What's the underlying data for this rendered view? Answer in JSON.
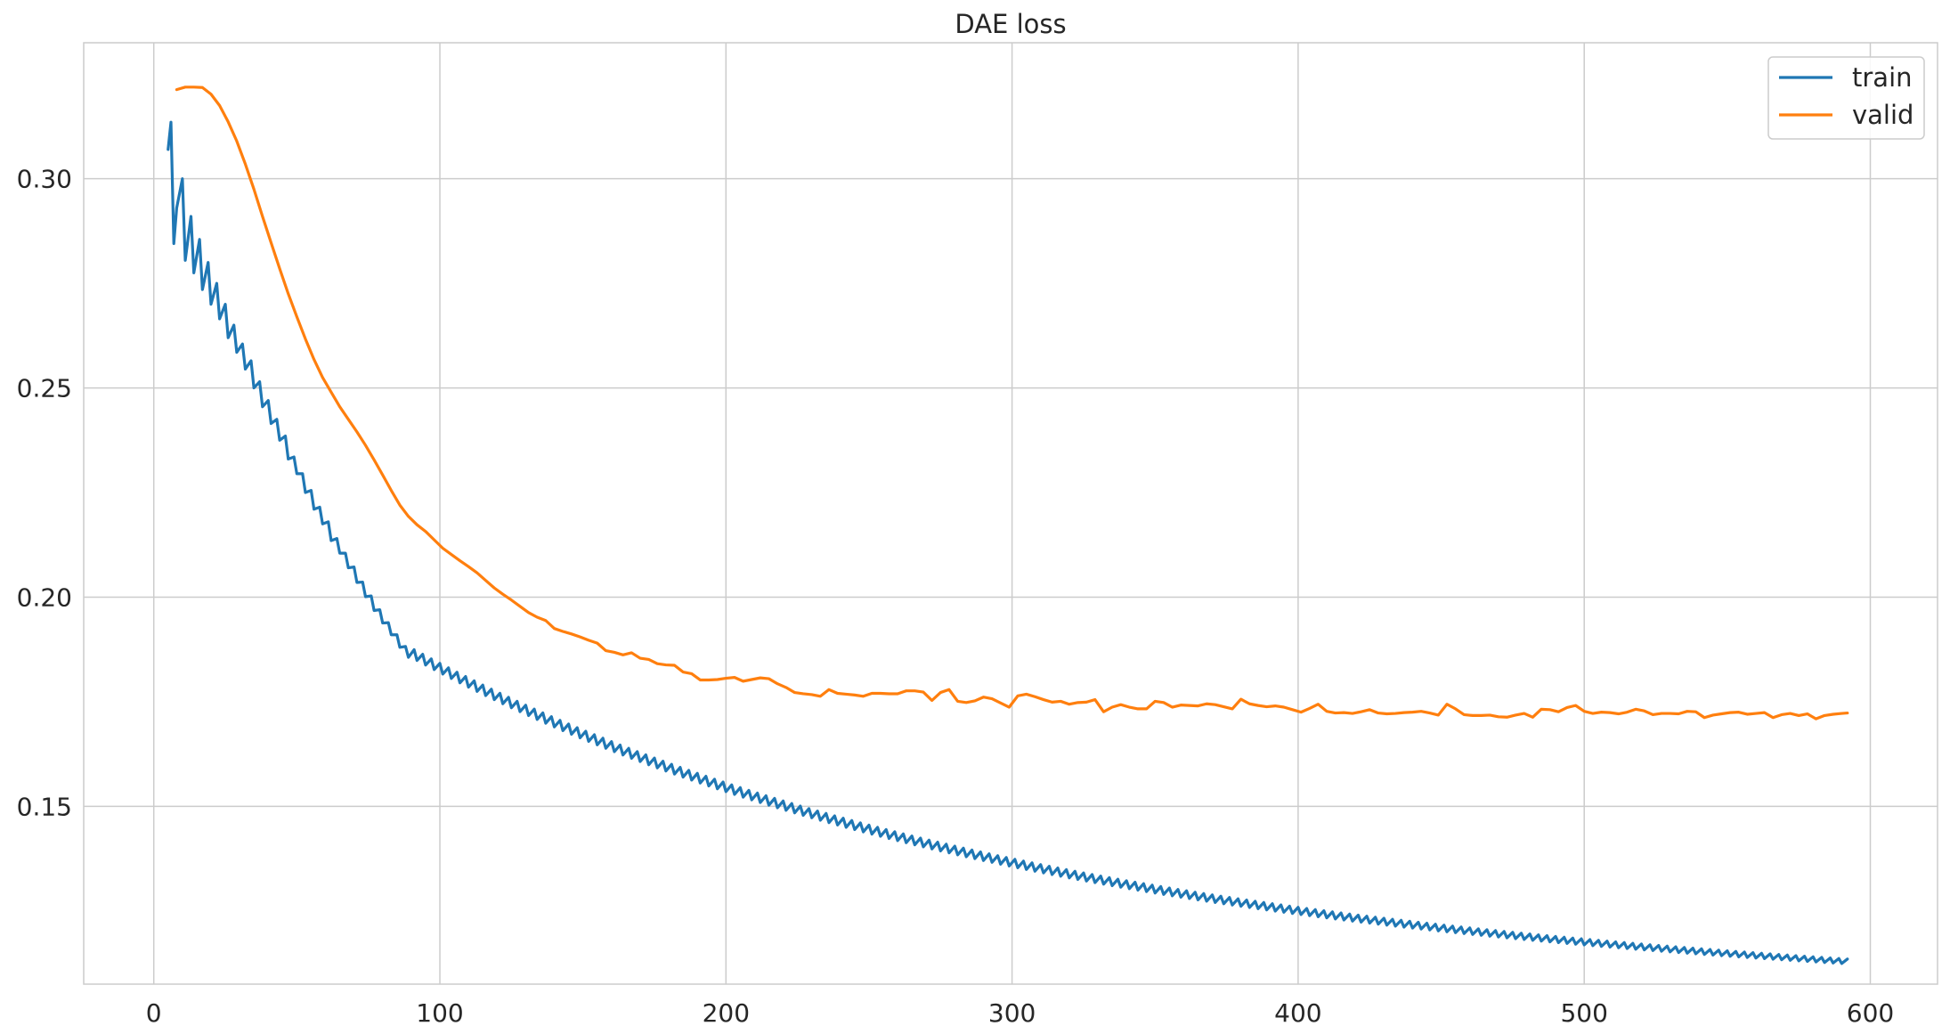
{
  "chart_data": {
    "type": "line",
    "title": "DAE loss",
    "xlabel": "",
    "ylabel": "",
    "xlim": [
      -24.5,
      623.5
    ],
    "ylim": [
      0.1075,
      0.3325
    ],
    "xticks": [
      0,
      100,
      200,
      300,
      400,
      500,
      600
    ],
    "xtick_labels": [
      "0",
      "100",
      "200",
      "300",
      "400",
      "500",
      "600"
    ],
    "yticks": [
      0.15,
      0.2,
      0.25,
      0.3
    ],
    "ytick_labels": [
      "0.15",
      "0.20",
      "0.25",
      "0.30"
    ],
    "grid": true,
    "legend_position": "top-right",
    "series": [
      {
        "name": "train",
        "color": "#1f77b4",
        "description": "zigzag pattern: alternating high/low values every epoch",
        "x_start": 5,
        "x_end": 592,
        "points": [
          [
            5,
            0.307
          ],
          [
            6,
            0.3135
          ],
          [
            7,
            0.2845
          ],
          [
            8,
            0.293
          ],
          [
            10,
            0.3
          ],
          [
            11,
            0.2805
          ],
          [
            13,
            0.291
          ],
          [
            14,
            0.2775
          ],
          [
            16,
            0.2855
          ],
          [
            17,
            0.2735
          ],
          [
            19,
            0.28
          ],
          [
            20,
            0.27
          ],
          [
            22,
            0.275
          ],
          [
            23,
            0.2665
          ],
          [
            25,
            0.27
          ],
          [
            26,
            0.262
          ],
          [
            28,
            0.265
          ],
          [
            29,
            0.2585
          ],
          [
            31,
            0.2605
          ],
          [
            32,
            0.2545
          ],
          [
            34,
            0.2565
          ],
          [
            35,
            0.25
          ],
          [
            37,
            0.2515
          ],
          [
            38,
            0.2455
          ],
          [
            40,
            0.247
          ],
          [
            41,
            0.2415
          ],
          [
            43,
            0.2425
          ],
          [
            44,
            0.2375
          ],
          [
            46,
            0.2385
          ],
          [
            47,
            0.233
          ],
          [
            49,
            0.2335
          ],
          [
            50,
            0.2295
          ],
          [
            52,
            0.2295
          ],
          [
            53,
            0.225
          ],
          [
            55,
            0.2255
          ],
          [
            56,
            0.221
          ],
          [
            58,
            0.2215
          ],
          [
            59,
            0.2175
          ],
          [
            61,
            0.218
          ],
          [
            62,
            0.2135
          ],
          [
            64,
            0.214
          ],
          [
            65,
            0.2105
          ],
          [
            67,
            0.2105
          ],
          [
            68,
            0.207
          ],
          [
            70,
            0.2072
          ],
          [
            71,
            0.2035
          ],
          [
            73,
            0.2036
          ],
          [
            74,
            0.2001
          ],
          [
            76,
            0.2003
          ],
          [
            77,
            0.1968
          ],
          [
            79,
            0.197
          ],
          [
            80,
            0.1938
          ],
          [
            82,
            0.1939
          ],
          [
            83,
            0.191
          ],
          [
            85,
            0.191
          ],
          [
            86,
            0.188
          ],
          [
            88,
            0.1882
          ],
          [
            89,
            0.1856
          ]
        ],
        "tail": {
          "from": 89,
          "to": 592,
          "step": 3,
          "high_end": 0.1128,
          "low_end": 0.1118,
          "amp_start": 0.0026,
          "amp_end": 0.0012
        }
      },
      {
        "name": "valid",
        "color": "#ff7f0e",
        "x_start": 8,
        "x_end": 592,
        "points": [
          [
            8,
            0.3213
          ],
          [
            11,
            0.3219
          ],
          [
            14,
            0.3219
          ],
          [
            17,
            0.3218
          ],
          [
            20,
            0.3202
          ],
          [
            23,
            0.3175
          ],
          [
            26,
            0.3136
          ],
          [
            29,
            0.309
          ],
          [
            32,
            0.3035
          ],
          [
            35,
            0.2975
          ],
          [
            38,
            0.291
          ],
          [
            41,
            0.2847
          ],
          [
            44,
            0.2785
          ],
          [
            47,
            0.2725
          ],
          [
            50,
            0.267
          ],
          [
            53,
            0.2617
          ],
          [
            56,
            0.2568
          ],
          [
            59,
            0.2525
          ],
          [
            62,
            0.249
          ],
          [
            65,
            0.2455
          ],
          [
            68,
            0.2425
          ],
          [
            71,
            0.2395
          ],
          [
            74,
            0.2363
          ],
          [
            77,
            0.2328
          ],
          [
            80,
            0.2292
          ],
          [
            83,
            0.2255
          ],
          [
            86,
            0.222
          ],
          [
            89,
            0.2193
          ],
          [
            92,
            0.2173
          ],
          [
            95,
            0.2157
          ],
          [
            98,
            0.2137
          ],
          [
            101,
            0.2117
          ],
          [
            104,
            0.2102
          ],
          [
            107,
            0.2087
          ],
          [
            110,
            0.2073
          ],
          [
            113,
            0.2058
          ],
          [
            116,
            0.204
          ],
          [
            119,
            0.2022
          ],
          [
            122,
            0.2007
          ],
          [
            125,
            0.1993
          ],
          [
            128,
            0.1978
          ],
          [
            131,
            0.1963
          ],
          [
            134,
            0.1952
          ],
          [
            137,
            0.1944
          ],
          [
            140,
            0.1925
          ],
          [
            143,
            0.1918
          ],
          [
            146,
            0.1912
          ],
          [
            149,
            0.1905
          ],
          [
            152,
            0.1897
          ],
          [
            155,
            0.189
          ],
          [
            158,
            0.1872
          ],
          [
            161,
            0.1868
          ],
          [
            164,
            0.1862
          ],
          [
            167,
            0.1867
          ],
          [
            170,
            0.1854
          ],
          [
            173,
            0.1851
          ],
          [
            176,
            0.1841
          ],
          [
            179,
            0.1838
          ],
          [
            182,
            0.1837
          ],
          [
            185,
            0.1821
          ],
          [
            188,
            0.1817
          ],
          [
            191,
            0.1802
          ],
          [
            194,
            0.1802
          ],
          [
            197,
            0.1803
          ],
          [
            200,
            0.1806
          ],
          [
            203,
            0.1808
          ],
          [
            206,
            0.1799
          ],
          [
            209,
            0.1803
          ],
          [
            212,
            0.1807
          ],
          [
            215,
            0.1805
          ],
          [
            218,
            0.1793
          ],
          [
            221,
            0.1784
          ],
          [
            224,
            0.1772
          ],
          [
            227,
            0.1769
          ],
          [
            230,
            0.1767
          ],
          [
            233,
            0.1763
          ],
          [
            236,
            0.1779
          ],
          [
            239,
            0.177
          ],
          [
            242,
            0.1768
          ],
          [
            245,
            0.1766
          ],
          [
            248,
            0.1763
          ],
          [
            251,
            0.177
          ],
          [
            254,
            0.177
          ],
          [
            257,
            0.1769
          ],
          [
            260,
            0.1769
          ],
          [
            263,
            0.1776
          ],
          [
            266,
            0.1776
          ],
          [
            269,
            0.1773
          ],
          [
            272,
            0.1753
          ],
          [
            275,
            0.1772
          ],
          [
            278,
            0.1779
          ],
          [
            281,
            0.1751
          ],
          [
            284,
            0.1748
          ],
          [
            287,
            0.1752
          ],
          [
            290,
            0.1761
          ],
          [
            293,
            0.1757
          ],
          [
            296,
            0.1747
          ],
          [
            299,
            0.1737
          ],
          [
            302,
            0.1764
          ],
          [
            305,
            0.1768
          ],
          [
            308,
            0.1762
          ],
          [
            311,
            0.1755
          ],
          [
            314,
            0.1749
          ],
          [
            317,
            0.1751
          ],
          [
            320,
            0.1744
          ],
          [
            323,
            0.1748
          ],
          [
            326,
            0.1749
          ],
          [
            329,
            0.1755
          ],
          [
            332,
            0.1726
          ],
          [
            335,
            0.1737
          ],
          [
            338,
            0.1743
          ],
          [
            341,
            0.1737
          ],
          [
            344,
            0.1733
          ],
          [
            347,
            0.1733
          ],
          [
            350,
            0.1751
          ],
          [
            353,
            0.1748
          ],
          [
            356,
            0.1737
          ],
          [
            359,
            0.1742
          ],
          [
            362,
            0.1741
          ],
          [
            365,
            0.174
          ],
          [
            368,
            0.1745
          ],
          [
            371,
            0.1743
          ],
          [
            374,
            0.1738
          ],
          [
            377,
            0.1733
          ],
          [
            380,
            0.1756
          ],
          [
            383,
            0.1745
          ],
          [
            386,
            0.1741
          ],
          [
            389,
            0.1738
          ],
          [
            392,
            0.174
          ],
          [
            395,
            0.1737
          ],
          [
            398,
            0.1731
          ],
          [
            401,
            0.1725
          ],
          [
            404,
            0.1734
          ],
          [
            407,
            0.1744
          ],
          [
            410,
            0.1727
          ],
          [
            413,
            0.1723
          ],
          [
            416,
            0.1724
          ],
          [
            419,
            0.1722
          ],
          [
            422,
            0.1726
          ],
          [
            425,
            0.1731
          ],
          [
            428,
            0.1723
          ],
          [
            431,
            0.1721
          ],
          [
            434,
            0.1722
          ],
          [
            437,
            0.1724
          ],
          [
            440,
            0.1725
          ],
          [
            443,
            0.1727
          ],
          [
            446,
            0.1723
          ],
          [
            449,
            0.1718
          ],
          [
            452,
            0.1744
          ],
          [
            455,
            0.1733
          ],
          [
            458,
            0.1719
          ],
          [
            461,
            0.1717
          ],
          [
            464,
            0.1717
          ],
          [
            467,
            0.1718
          ],
          [
            470,
            0.1714
          ],
          [
            473,
            0.1713
          ],
          [
            476,
            0.1718
          ],
          [
            479,
            0.1722
          ],
          [
            482,
            0.1713
          ],
          [
            485,
            0.1732
          ],
          [
            488,
            0.1731
          ],
          [
            491,
            0.1726
          ],
          [
            494,
            0.1736
          ],
          [
            497,
            0.1741
          ],
          [
            500,
            0.1727
          ],
          [
            503,
            0.1722
          ],
          [
            506,
            0.1725
          ],
          [
            509,
            0.1724
          ],
          [
            512,
            0.1721
          ],
          [
            515,
            0.1725
          ],
          [
            518,
            0.1732
          ],
          [
            521,
            0.1728
          ],
          [
            524,
            0.1719
          ],
          [
            527,
            0.1722
          ],
          [
            530,
            0.1722
          ],
          [
            533,
            0.1721
          ],
          [
            536,
            0.1727
          ],
          [
            539,
            0.1726
          ],
          [
            542,
            0.1712
          ],
          [
            545,
            0.1718
          ],
          [
            548,
            0.1721
          ],
          [
            551,
            0.1724
          ],
          [
            554,
            0.1725
          ],
          [
            557,
            0.172
          ],
          [
            560,
            0.1722
          ],
          [
            563,
            0.1724
          ],
          [
            566,
            0.1712
          ],
          [
            569,
            0.1719
          ],
          [
            572,
            0.1722
          ],
          [
            575,
            0.1717
          ],
          [
            578,
            0.1721
          ],
          [
            581,
            0.1709
          ],
          [
            584,
            0.1717
          ],
          [
            587,
            0.172
          ],
          [
            590,
            0.1722
          ],
          [
            592,
            0.1723
          ]
        ]
      }
    ]
  }
}
